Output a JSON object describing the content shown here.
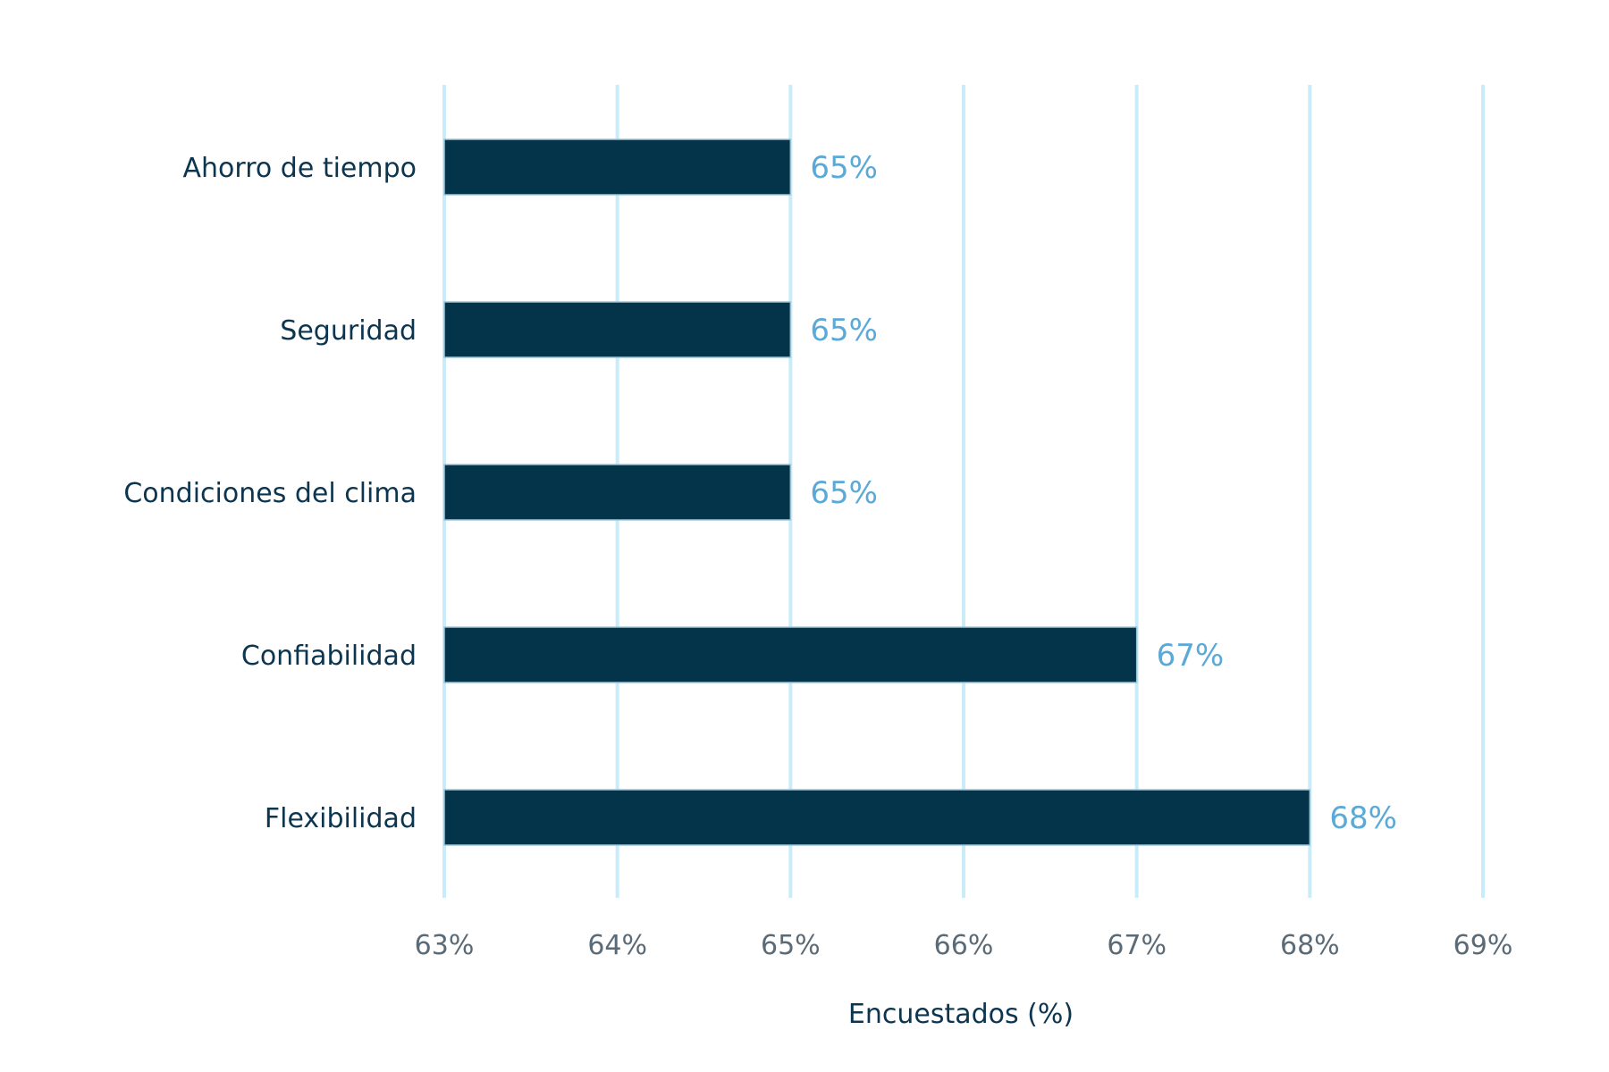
{
  "chart_data": {
    "type": "bar",
    "orientation": "horizontal",
    "categories": [
      "Ahorro de tiempo",
      "Seguridad",
      "Condiciones del clima",
      "Confiabilidad",
      "Flexibilidad"
    ],
    "values": [
      65,
      65,
      65,
      67,
      68
    ],
    "value_labels": [
      "65%",
      "65%",
      "65%",
      "67%",
      "68%"
    ],
    "title": "",
    "xlabel": "Encuestados (%)",
    "ylabel": "",
    "xlim": [
      63,
      69
    ],
    "x_ticks": [
      63,
      64,
      65,
      66,
      67,
      68,
      69
    ],
    "x_tick_labels": [
      "63%",
      "64%",
      "65%",
      "66%",
      "67%",
      "68%",
      "69%"
    ],
    "grid": true,
    "legend": "none",
    "colors": {
      "bar": "#04344a",
      "grid": "#c9ecfa",
      "value_label": "#5aa9d6",
      "category_label": "#0c3550",
      "tick_label": "#5a6a76"
    }
  }
}
